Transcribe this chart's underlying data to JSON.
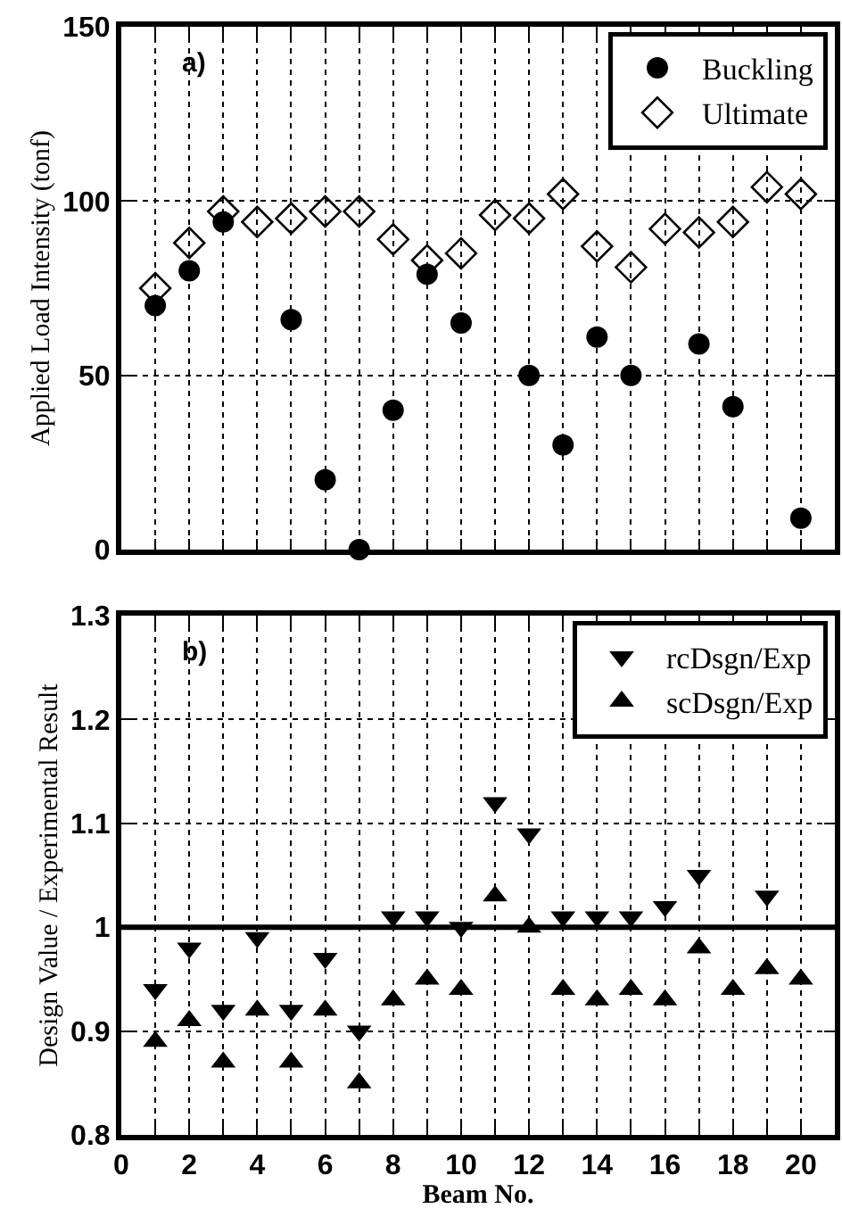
{
  "chart_data": [
    {
      "type": "scatter",
      "ylabel": "Applied Load Intensity (tonf)",
      "annotations": [
        "a)"
      ],
      "x": [
        1,
        2,
        3,
        4,
        5,
        6,
        7,
        8,
        9,
        10,
        11,
        12,
        13,
        14,
        15,
        16,
        17,
        18,
        19,
        20
      ],
      "series": [
        {
          "name": "Buckling",
          "color": "#000000",
          "marker": "circle",
          "values": [
            70,
            80,
            94,
            null,
            66,
            20,
            0,
            40,
            79,
            65,
            null,
            50,
            30,
            61,
            50,
            null,
            59,
            41,
            null,
            9
          ]
        },
        {
          "name": "Ultimate",
          "color": "#000000",
          "marker": "diamond-open",
          "values": [
            75,
            88,
            97,
            94,
            95,
            97,
            97,
            89,
            83,
            85,
            96,
            95,
            102,
            87,
            81,
            92,
            91,
            94,
            104,
            102
          ]
        }
      ],
      "xlim": [
        0,
        21
      ],
      "xticks": [
        {
          "value": 0,
          "label": null
        },
        {
          "value": 1,
          "label": null
        },
        {
          "value": 2,
          "label": null
        },
        {
          "value": 3,
          "label": null
        },
        {
          "value": 4,
          "label": null
        },
        {
          "value": 5,
          "label": null
        },
        {
          "value": 6,
          "label": null
        },
        {
          "value": 7,
          "label": null
        },
        {
          "value": 8,
          "label": null
        },
        {
          "value": 9,
          "label": null
        },
        {
          "value": 10,
          "label": null
        },
        {
          "value": 11,
          "label": null
        },
        {
          "value": 12,
          "label": null
        },
        {
          "value": 13,
          "label": null
        },
        {
          "value": 14,
          "label": null
        },
        {
          "value": 15,
          "label": null
        },
        {
          "value": 16,
          "label": null
        },
        {
          "value": 17,
          "label": null
        },
        {
          "value": 18,
          "label": null
        },
        {
          "value": 19,
          "label": null
        },
        {
          "value": 20,
          "label": null
        },
        {
          "value": 21,
          "label": null
        }
      ],
      "ylim": [
        0,
        150
      ],
      "yticks": [
        0,
        50,
        100,
        150
      ],
      "tick_labels": "y",
      "grid": true,
      "legend": "top right"
    },
    {
      "type": "scatter",
      "xlabel": "Beam No.",
      "ylabel": "Design Value / Experimental Result",
      "annotations": [
        "b)"
      ],
      "x": [
        1,
        2,
        3,
        4,
        5,
        6,
        7,
        8,
        9,
        10,
        11,
        12,
        13,
        14,
        15,
        16,
        17,
        18,
        19,
        20
      ],
      "series": [
        {
          "name": "rcDsgn/Exp",
          "color": "#000000",
          "marker": "triangle-down",
          "values": [
            0.94,
            0.98,
            0.92,
            0.99,
            0.92,
            0.97,
            0.9,
            1.01,
            1.01,
            1.0,
            1.12,
            1.09,
            1.01,
            1.01,
            1.01,
            1.02,
            1.05,
            null,
            1.03,
            null
          ]
        },
        {
          "name": "scDsgn/Exp",
          "color": "#000000",
          "marker": "triangle",
          "values": [
            0.89,
            0.91,
            0.87,
            0.92,
            0.87,
            0.92,
            0.85,
            0.93,
            0.95,
            0.94,
            1.03,
            1.0,
            0.94,
            0.93,
            0.94,
            0.93,
            0.98,
            0.94,
            0.96,
            0.95
          ]
        }
      ],
      "xlim": [
        0,
        21
      ],
      "xticks": [
        0,
        {
          "value": 1,
          "label": null
        },
        2,
        {
          "value": 3,
          "label": null
        },
        4,
        {
          "value": 5,
          "label": null
        },
        6,
        {
          "value": 7,
          "label": null
        },
        8,
        {
          "value": 9,
          "label": null
        },
        10,
        {
          "value": 11,
          "label": null
        },
        12,
        {
          "value": 13,
          "label": null
        },
        14,
        {
          "value": 15,
          "label": null
        },
        16,
        {
          "value": 17,
          "label": null
        },
        18,
        {
          "value": 19,
          "label": null
        },
        20,
        {
          "value": 21,
          "label": null
        }
      ],
      "ylim": [
        0.8,
        1.3
      ],
      "yticks": [
        0.8,
        0.9,
        1,
        1.1,
        1.2,
        1.3
      ],
      "grid": true,
      "legend": "top right",
      "ref_lines": [
        {
          "axis": "y",
          "value": 1,
          "color": "#000000",
          "line_style": "solid"
        }
      ]
    }
  ]
}
